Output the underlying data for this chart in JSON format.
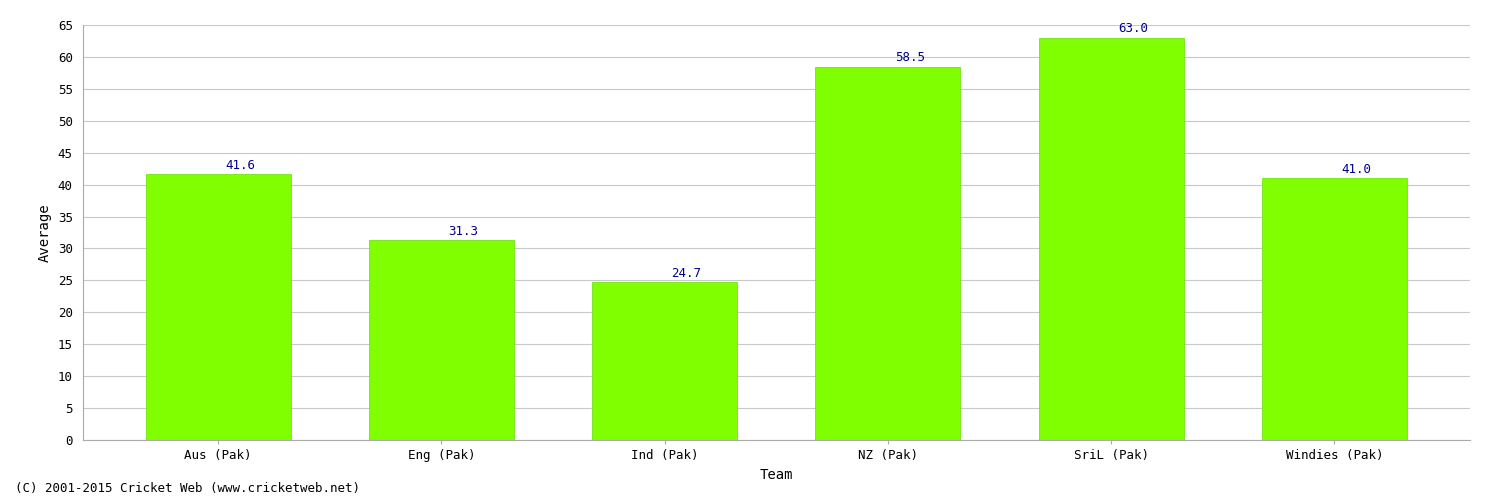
{
  "categories": [
    "Aus (Pak)",
    "Eng (Pak)",
    "Ind (Pak)",
    "NZ (Pak)",
    "SriL (Pak)",
    "Windies (Pak)"
  ],
  "values": [
    41.6,
    31.3,
    24.7,
    58.5,
    63.0,
    41.0
  ],
  "bar_color": "#7FFF00",
  "bar_edge_color": "#66DD00",
  "label_color": "#00008B",
  "xlabel": "Team",
  "ylabel": "Average",
  "ylim": [
    0,
    65
  ],
  "yticks": [
    0,
    5,
    10,
    15,
    20,
    25,
    30,
    35,
    40,
    45,
    50,
    55,
    60,
    65
  ],
  "grid_color": "#c8c8c8",
  "background_color": "#ffffff",
  "footer": "(C) 2001-2015 Cricket Web (www.cricketweb.net)",
  "label_fontsize": 9,
  "axis_fontsize": 9,
  "xlabel_fontsize": 10,
  "ylabel_fontsize": 10,
  "footer_fontsize": 9,
  "bar_width": 0.65
}
